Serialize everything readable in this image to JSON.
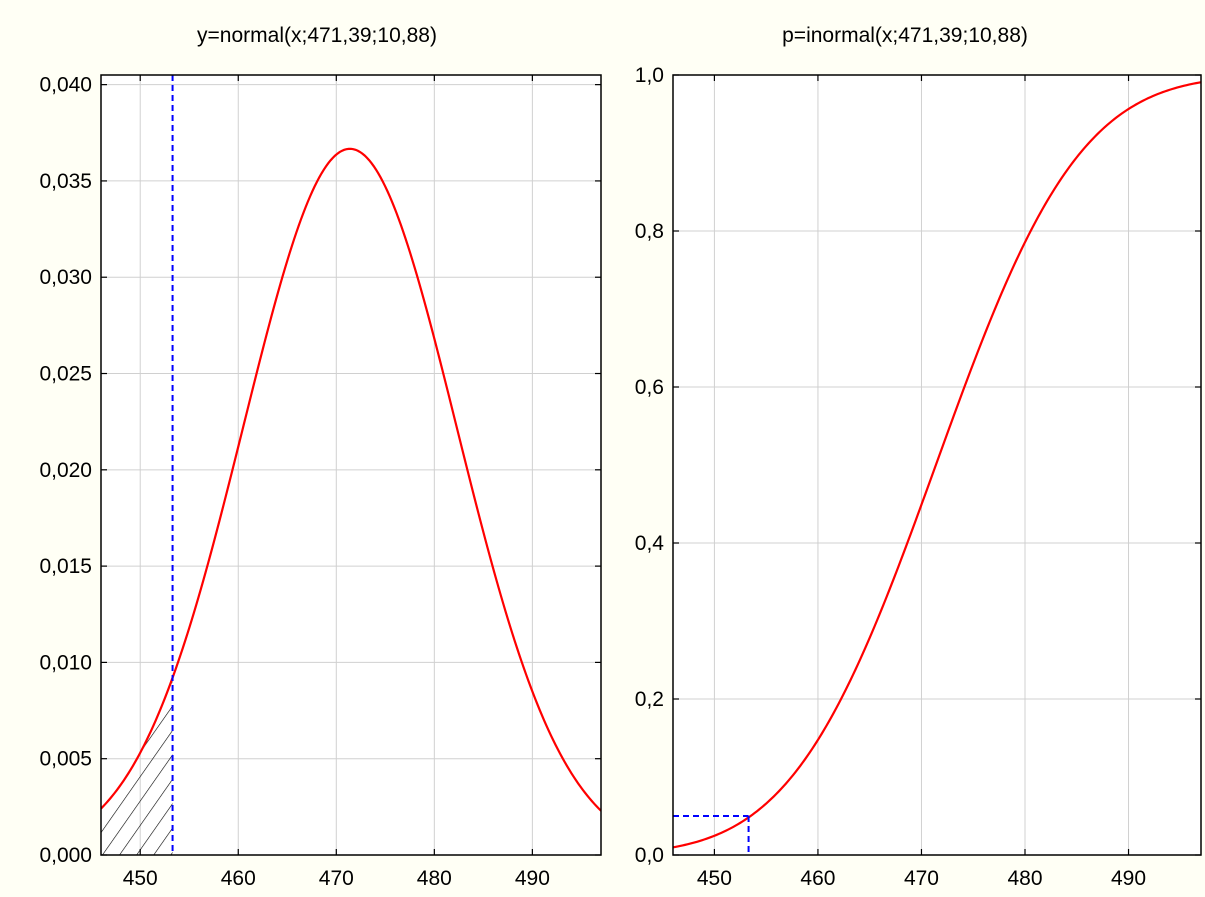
{
  "colors": {
    "background": "#fffff5",
    "plot_background": "#ffffff",
    "grid": "#d0d0d0",
    "curve": "#ff0000",
    "marker": "#0000ff",
    "hatch": "#000000"
  },
  "chart_data": [
    {
      "type": "line",
      "title": "y=normal(x;471,39;10,88)",
      "xlabel": "",
      "ylabel": "",
      "function": "normal_pdf",
      "mean": 471.39,
      "sd": 10.88,
      "xlim": [
        446,
        497
      ],
      "ylim": [
        0,
        0.0405
      ],
      "x_ticks": [
        450,
        460,
        470,
        480,
        490
      ],
      "x_tick_labels": [
        "450",
        "460",
        "470",
        "480",
        "490"
      ],
      "y_ticks": [
        0,
        0.005,
        0.01,
        0.015,
        0.02,
        0.025,
        0.03,
        0.035,
        0.04
      ],
      "y_tick_labels": [
        "0,000",
        "0,005",
        "0,010",
        "0,015",
        "0,020",
        "0,025",
        "0,030",
        "0,035",
        "0,040"
      ],
      "grid": true,
      "critical_x": 453.3,
      "shaded_region": [
        446,
        453.3
      ],
      "series": [
        {
          "values": [
            [
              446,
              0.0024
            ],
            [
              450,
              0.0054
            ],
            [
              453.3,
              0.0092
            ],
            [
              460,
              0.0211
            ],
            [
              465,
              0.0308
            ],
            [
              471.39,
              0.0367
            ],
            [
              478,
              0.0305
            ],
            [
              485,
              0.0168
            ],
            [
              490,
              0.0085
            ],
            [
              497,
              0.0023
            ]
          ]
        }
      ]
    },
    {
      "type": "line",
      "title": "p=inormal(x;471,39;10,88)",
      "xlabel": "",
      "ylabel": "",
      "function": "normal_cdf",
      "mean": 471.39,
      "sd": 10.88,
      "xlim": [
        446,
        497
      ],
      "ylim": [
        0,
        1.0
      ],
      "x_ticks": [
        450,
        460,
        470,
        480,
        490
      ],
      "x_tick_labels": [
        "450",
        "460",
        "470",
        "480",
        "490"
      ],
      "y_ticks": [
        0,
        0.2,
        0.4,
        0.6,
        0.8,
        1.0
      ],
      "y_tick_labels": [
        "0,0",
        "0,2",
        "0,4",
        "0,6",
        "0,8",
        "1,0"
      ],
      "grid": true,
      "critical_x": 453.3,
      "critical_p": 0.05,
      "series": [
        {
          "values": [
            [
              446,
              0.01
            ],
            [
              450,
              0.025
            ],
            [
              453.3,
              0.048
            ],
            [
              460,
              0.147
            ],
            [
              465,
              0.278
            ],
            [
              471.39,
              0.5
            ],
            [
              478,
              0.728
            ],
            [
              485,
              0.894
            ],
            [
              490,
              0.956
            ],
            [
              497,
              0.991
            ]
          ]
        }
      ]
    }
  ]
}
